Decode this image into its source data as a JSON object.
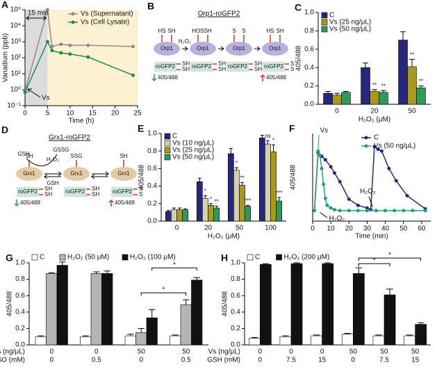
{
  "chart_data": [
    {
      "type": "line",
      "panel_label": "A",
      "log_y": true,
      "ylabel": "Vanadium (ppb)",
      "xlabel": "Time (h)",
      "xlim": [
        0,
        25
      ],
      "xticks": [
        0,
        5,
        10,
        15,
        20,
        25
      ],
      "ylim": [
        0.1,
        100000
      ],
      "yticks": [
        {
          "value": 0.1,
          "label": "10⁻¹"
        },
        {
          "value": 1,
          "label": "10⁰"
        },
        {
          "value": 10,
          "label": "10¹"
        },
        {
          "value": 100,
          "label": "10²"
        },
        {
          "value": 1000,
          "label": "10³"
        },
        {
          "value": 10000,
          "label": "10⁴"
        },
        {
          "value": 100000,
          "label": "10⁵"
        }
      ],
      "regions": [
        {
          "xlim": [
            0,
            5
          ],
          "color": "#dcdcdc"
        },
        {
          "xlim": [
            5,
            25
          ],
          "color": "#fdf1d2"
        }
      ],
      "annotations": [
        "15 min",
        "Vs"
      ],
      "legend": "upper right",
      "series": [
        {
          "name": "Vs (Supernatant)",
          "color": "#8c8c8c",
          "x": [
            0,
            5,
            6,
            8,
            10,
            14,
            24
          ],
          "values": [
            0.8,
            100000,
            500,
            700,
            600,
            600,
            500
          ]
        },
        {
          "name": "Vs (Cell Lysate)",
          "color": "#1e8a4c",
          "x": [
            0,
            5,
            6,
            8,
            10,
            14,
            24
          ],
          "values": [
            0.7,
            1000,
            280,
            200,
            170,
            110,
            8
          ]
        }
      ]
    },
    {
      "type": "bar",
      "panel_label": "C",
      "ylabel": "405/488",
      "xlabel": "H₂O₂ (μM)",
      "legend": "upper left",
      "categories": [
        "0",
        "20",
        "50"
      ],
      "ylim": [
        0,
        1.0
      ],
      "yticks": [
        {
          "value": 0,
          "label": "0.0"
        },
        0.2,
        0.4,
        0.6,
        0.8,
        {
          "value": 1,
          "label": "1.0"
        }
      ],
      "series": [
        {
          "name": "C",
          "color": "#27287a",
          "values": [
            0.12,
            0.4,
            0.7
          ],
          "errors": [
            0.02,
            0.05,
            0.09
          ],
          "significance": [
            null,
            null,
            null
          ]
        },
        {
          "name": "Vs (25 ng/μL)",
          "color": "#a89a1c",
          "values": [
            0.1,
            0.14,
            0.41
          ],
          "errors": [
            0.02,
            0.02,
            0.08
          ],
          "significance": [
            null,
            "**",
            "**"
          ]
        },
        {
          "name": "Vs (50 ng/μL)",
          "color": "#2f9a5c",
          "values": [
            0.13,
            0.13,
            0.18
          ],
          "errors": [
            0.01,
            0.02,
            0.02
          ],
          "significance": [
            null,
            "**",
            "**"
          ]
        }
      ]
    },
    {
      "type": "bar",
      "panel_label": "E",
      "ylabel": "405/488",
      "xlabel": "H₂O₂ (μM)",
      "legend": "upper left",
      "categories": [
        "0",
        "20",
        "50",
        "100"
      ],
      "ylim": [
        0,
        1.0
      ],
      "yticks": [
        {
          "value": 0,
          "label": "0.0"
        },
        0.2,
        0.4,
        0.6,
        0.8,
        {
          "value": 1,
          "label": "1.0"
        }
      ],
      "series": [
        {
          "name": "C",
          "color": "#27287a",
          "values": [
            0.11,
            0.45,
            0.77,
            0.95
          ],
          "errors": [
            0.01,
            0.04,
            0.06,
            0.03
          ],
          "significance": [
            null,
            null,
            null,
            null
          ]
        },
        {
          "name": "Vs (10 ng/μL)",
          "color": "#d6d0ae",
          "values": [
            0.13,
            0.26,
            0.58,
            0.88
          ],
          "errors": [
            0.02,
            0.03,
            0.03,
            0.04
          ],
          "significance": [
            null,
            "*",
            "*",
            "ns"
          ]
        },
        {
          "name": "Vs (25 ng/μL)",
          "color": "#a89a1c",
          "values": [
            0.13,
            0.18,
            0.41,
            0.79
          ],
          "errors": [
            0.02,
            0.02,
            0.03,
            0.08
          ],
          "significance": [
            null,
            "*",
            "**",
            "*"
          ]
        },
        {
          "name": "Vs (50 ng/μL)",
          "color": "#2f9a5c",
          "values": [
            0.13,
            0.15,
            0.17,
            0.23
          ],
          "errors": [
            0.01,
            0.02,
            0.01,
            0.04
          ],
          "significance": [
            null,
            "**",
            "***",
            "***"
          ]
        }
      ]
    },
    {
      "type": "line",
      "panel_label": "F",
      "ylabel": "405/488",
      "xlabel": "Time (min)",
      "legend": "upper right",
      "xlim": [
        0,
        65
      ],
      "xticks": [
        0,
        10,
        20,
        30,
        40,
        50,
        60
      ],
      "ylim": [
        0,
        1
      ],
      "annotations": [
        "Vs",
        "H₂O₂",
        "H₂O₂"
      ],
      "series": [
        {
          "name": "C",
          "color": "#27287a",
          "x": [
            1,
            3,
            5,
            7,
            10,
            12,
            15,
            20,
            25,
            30,
            32,
            34,
            36,
            38,
            42,
            46,
            52,
            62
          ],
          "values": [
            0.12,
            0.78,
            0.74,
            0.7,
            0.62,
            0.55,
            0.45,
            0.25,
            0.18,
            0.15,
            0.13,
            0.85,
            0.82,
            0.8,
            0.6,
            0.46,
            0.29,
            0.14
          ]
        },
        {
          "name": "Vs (50 ng/μL)",
          "color": "#2a9a7c",
          "x": [
            1,
            3,
            4,
            5,
            6,
            7,
            8,
            10,
            12,
            15,
            20,
            25,
            30,
            35,
            40,
            45,
            50,
            55,
            62
          ],
          "values": [
            0.12,
            0.8,
            0.75,
            0.6,
            0.42,
            0.26,
            0.18,
            0.15,
            0.13,
            0.12,
            0.12,
            0.12,
            0.12,
            0.12,
            0.12,
            0.12,
            0.12,
            0.12,
            0.12
          ]
        }
      ]
    },
    {
      "type": "bar",
      "panel_label": "G",
      "ylabel": "405/488",
      "legend": "top",
      "category_rows": [
        {
          "label": "Vs (ng/μL)",
          "values": [
            "0",
            "0",
            "50",
            "50"
          ]
        },
        {
          "label": "BSO (mM)",
          "values": [
            "0",
            "0.5",
            "0",
            "0.5"
          ]
        }
      ],
      "ylim": [
        0,
        1.0
      ],
      "yticks": [
        {
          "value": 0,
          "label": "0.0"
        },
        0.2,
        0.4,
        0.6,
        0.8,
        {
          "value": 1,
          "label": "1.0"
        }
      ],
      "brackets": [
        "*",
        "*"
      ],
      "series": [
        {
          "name": "C",
          "color": "#ffffff",
          "values": [
            0.1,
            0.1,
            0.11,
            0.11
          ],
          "errors": [
            0.01,
            0.01,
            0.02,
            0.01
          ]
        },
        {
          "name": "H₂O₂ (50 μM)",
          "color": "#b4b4b4",
          "values": [
            0.87,
            0.87,
            0.15,
            0.49
          ],
          "errors": [
            0.01,
            0.02,
            0.05,
            0.06
          ]
        },
        {
          "name": "H₂O₂ (100 μM)",
          "color": "#111111",
          "values": [
            0.97,
            0.87,
            0.33,
            0.79
          ],
          "errors": [
            0.04,
            0.03,
            0.1,
            0.03
          ]
        }
      ]
    },
    {
      "type": "bar",
      "panel_label": "H",
      "ylabel": "405/488",
      "legend": "top",
      "category_rows": [
        {
          "label": "Vs (ng/μL)",
          "values": [
            "0",
            "0",
            "0",
            "50",
            "50",
            "50"
          ]
        },
        {
          "label": "GSH (mM)",
          "values": [
            "0",
            "7.5",
            "15",
            "0",
            "7.5",
            "15"
          ]
        }
      ],
      "ylim": [
        0,
        1.0
      ],
      "yticks": [
        {
          "value": 0,
          "label": "0.0"
        },
        0.2,
        0.4,
        0.6,
        0.8,
        {
          "value": 1,
          "label": "1.0"
        }
      ],
      "brackets": [
        "*",
        "*"
      ],
      "series": [
        {
          "name": "C",
          "color": "#ffffff",
          "values": [
            0.08,
            0.1,
            0.11,
            0.13,
            0.11,
            0.11
          ],
          "errors": [
            0.01,
            0.01,
            0.01,
            0.01,
            0.01,
            0.01
          ]
        },
        {
          "name": "H₂O₂ (200 μM)",
          "color": "#111111",
          "values": [
            0.98,
            0.99,
            0.99,
            0.87,
            0.61,
            0.25
          ],
          "errors": [
            0.01,
            0.01,
            0.01,
            0.07,
            0.07,
            0.02
          ]
        }
      ]
    }
  ],
  "diagrams": [
    {
      "panel_label": "B",
      "title": "Orp1-roGFP2",
      "reagents": [
        "H₂O₂"
      ],
      "readouts": [
        "405/488",
        "405/488"
      ],
      "stages": [
        {
          "enzyme": "Orp1",
          "enzyme_thiols": [
            "HS",
            "SH"
          ],
          "probe": "roGFP2",
          "probe_thiols": [
            "SH",
            "SH"
          ]
        },
        {
          "enzyme": "Orp1",
          "enzyme_thiols": [
            "HOS",
            "SH"
          ],
          "probe": "roGFP2",
          "probe_thiols": [
            "SH",
            "SH"
          ]
        },
        {
          "enzyme": "Orp1",
          "enzyme_thiols": [
            "S",
            "S"
          ],
          "probe": "roGFP2",
          "probe_thiols": [
            "SH",
            "SH"
          ]
        },
        {
          "enzyme": "Orp1",
          "enzyme_thiols": [
            "HS",
            "SH"
          ],
          "probe": "roGFP2",
          "probe_thiols": [
            "S",
            "S"
          ]
        }
      ]
    },
    {
      "panel_label": "D",
      "title": "Grx1-roGFP2",
      "reagents": [
        "GSH",
        "GSSG",
        "H₂O₂",
        "GSH"
      ],
      "readouts": [
        "405/488",
        "405/488"
      ],
      "stages": [
        {
          "enzyme": "Grx1",
          "enzyme_thiols": [
            "SH"
          ],
          "probe": "roGFP2",
          "probe_thiols": [
            "SH",
            "SH"
          ]
        },
        {
          "enzyme": "Grx1",
          "enzyme_thiols": [
            "SSG"
          ],
          "probe": "roGFP2",
          "probe_thiols": [
            "SH",
            "SH"
          ]
        },
        {
          "enzyme": "Grx1",
          "enzyme_thiols": [
            "SH"
          ],
          "probe": "roGFP2",
          "probe_thiols": [
            "S",
            "S"
          ]
        }
      ]
    }
  ]
}
